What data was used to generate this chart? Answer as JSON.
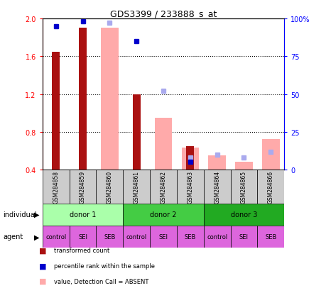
{
  "title": "GDS3399 / 233888_s_at",
  "samples": [
    "GSM284858",
    "GSM284859",
    "GSM284860",
    "GSM284861",
    "GSM284862",
    "GSM284863",
    "GSM284864",
    "GSM284865",
    "GSM284866"
  ],
  "transformed_count": [
    1.65,
    1.9,
    null,
    1.2,
    null,
    0.65,
    null,
    null,
    null
  ],
  "percentile_rank": [
    95,
    98,
    null,
    85,
    null,
    5,
    null,
    null,
    null
  ],
  "value_absent": [
    null,
    null,
    1.9,
    null,
    0.95,
    0.63,
    0.55,
    0.48,
    0.72
  ],
  "rank_absent": [
    null,
    null,
    97,
    null,
    52,
    8,
    10,
    8,
    12
  ],
  "ylim_left": [
    0.4,
    2.0
  ],
  "ylim_right": [
    0,
    100
  ],
  "yticks_left": [
    0.4,
    0.8,
    1.2,
    1.6,
    2.0
  ],
  "yticks_right": [
    0,
    25,
    50,
    75,
    100
  ],
  "yticklabels_right": [
    "0",
    "25",
    "50",
    "75",
    "100%"
  ],
  "bar_color_present": "#aa1111",
  "bar_color_absent": "#ffaaaa",
  "marker_color_present": "#0000cc",
  "marker_color_absent": "#aaaaee",
  "donor_groups": [
    {
      "label": "donor 1",
      "start": 0,
      "end": 2,
      "color": "#aaffaa"
    },
    {
      "label": "donor 2",
      "start": 3,
      "end": 5,
      "color": "#44cc44"
    },
    {
      "label": "donor 3",
      "start": 6,
      "end": 8,
      "color": "#22aa22"
    }
  ],
  "agent_labels": [
    "control",
    "SEI",
    "SEB",
    "control",
    "SEI",
    "SEB",
    "control",
    "SEI",
    "SEB"
  ],
  "agent_color": "#dd66dd",
  "legend_items": [
    {
      "label": "transformed count",
      "color": "#aa1111"
    },
    {
      "label": "percentile rank within the sample",
      "color": "#0000cc"
    },
    {
      "label": "value, Detection Call = ABSENT",
      "color": "#ffaaaa"
    },
    {
      "label": "rank, Detection Call = ABSENT",
      "color": "#aaaaee"
    }
  ]
}
